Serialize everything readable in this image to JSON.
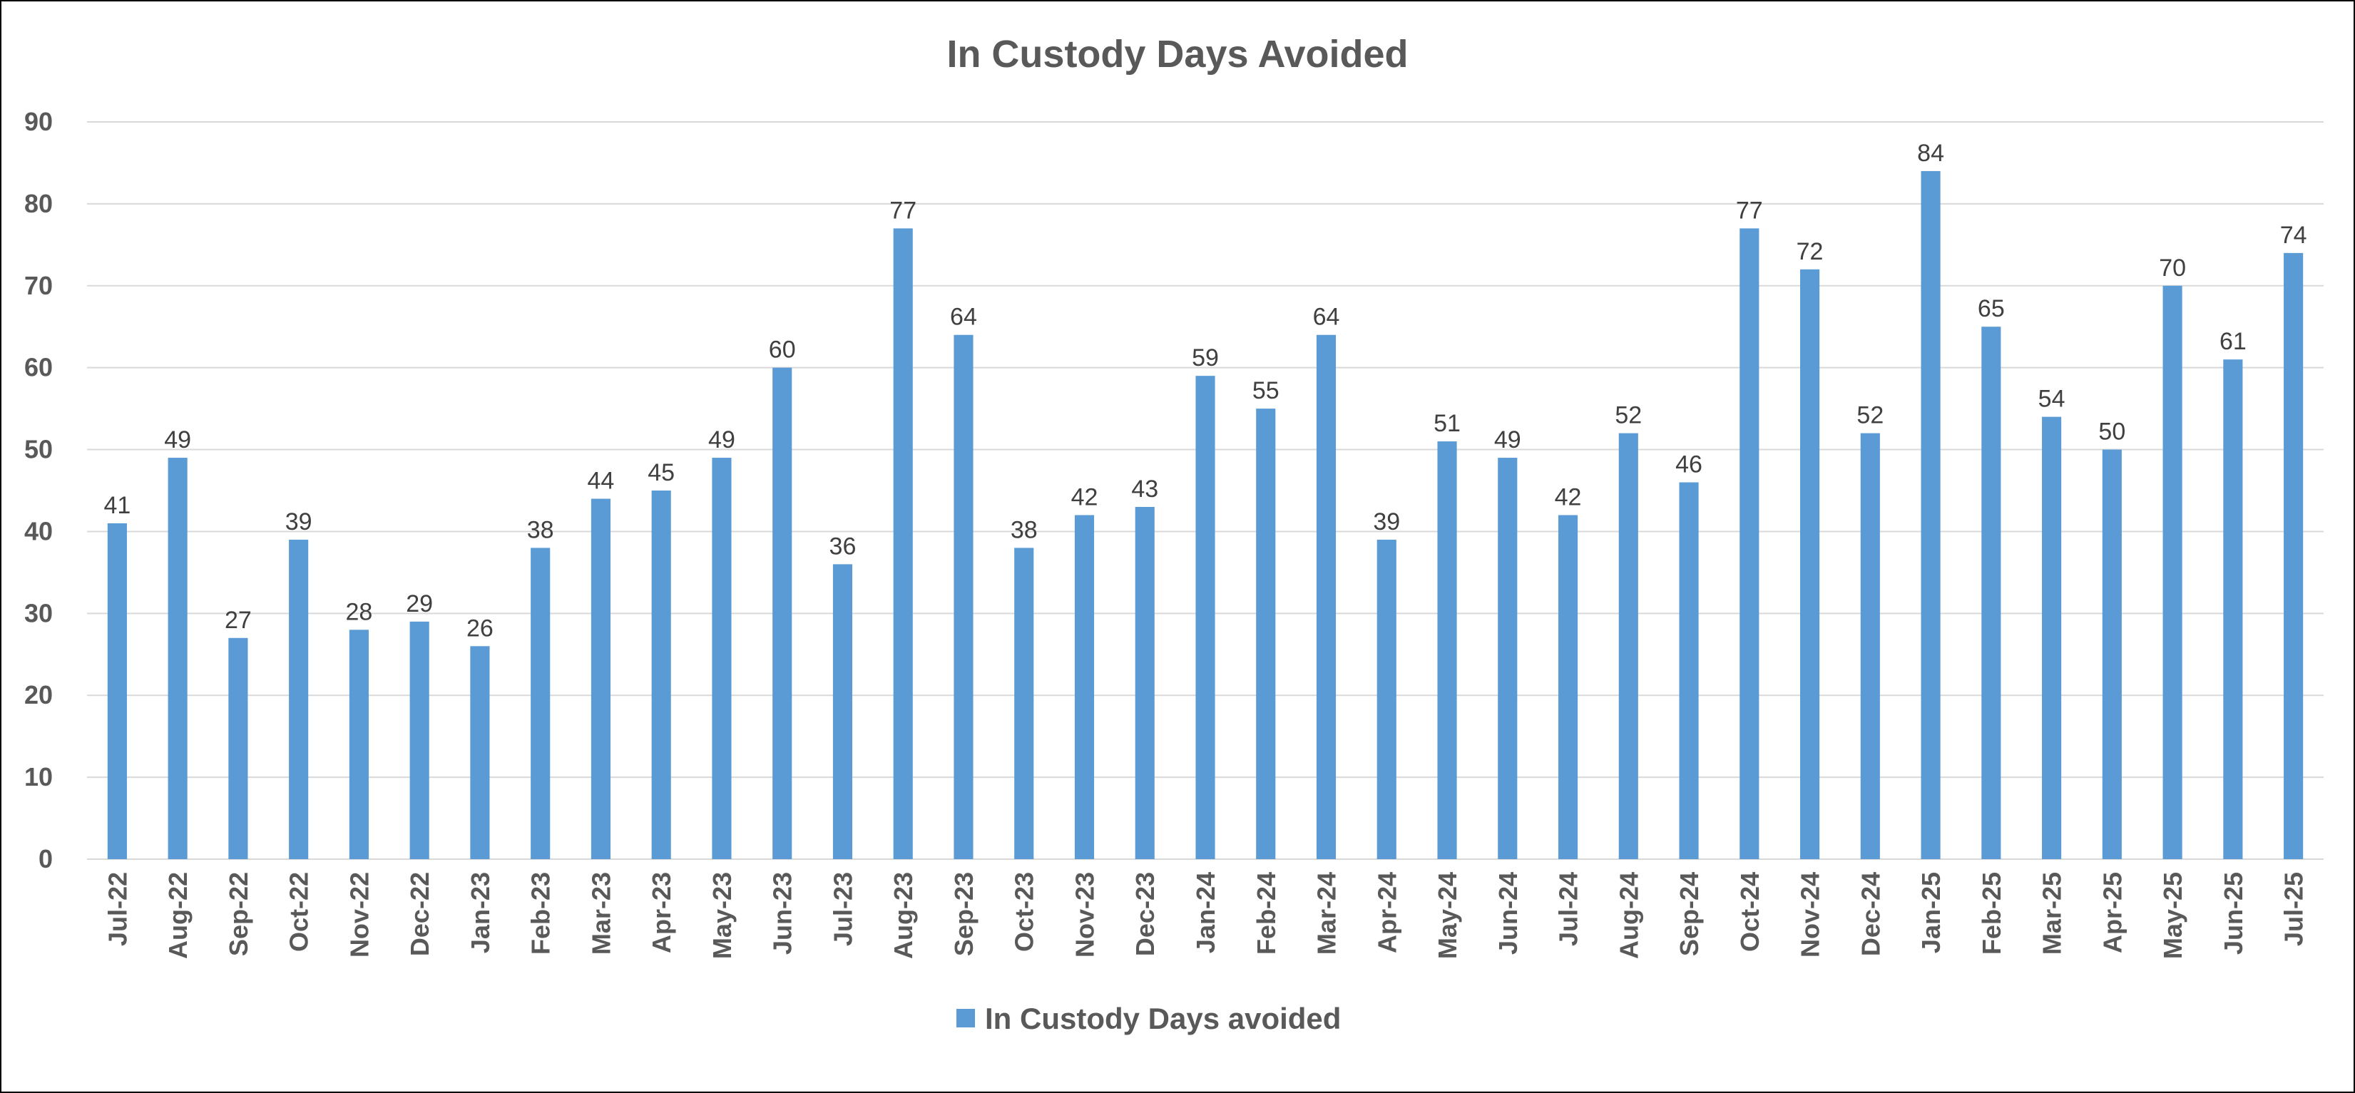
{
  "chart_data": {
    "type": "bar",
    "title": "In Custody Days Avoided",
    "xlabel": "",
    "ylabel": "",
    "ylim": [
      0,
      90
    ],
    "yticks": [
      0,
      10,
      20,
      30,
      40,
      50,
      60,
      70,
      80,
      90
    ],
    "grid": true,
    "legend_position": "bottom",
    "data_labels": true,
    "categories": [
      "Jul-22",
      "Aug-22",
      "Sep-22",
      "Oct-22",
      "Nov-22",
      "Dec-22",
      "Jan-23",
      "Feb-23",
      "Mar-23",
      "Apr-23",
      "May-23",
      "Jun-23",
      "Jul-23",
      "Aug-23",
      "Sep-23",
      "Oct-23",
      "Nov-23",
      "Dec-23",
      "Jan-24",
      "Feb-24",
      "Mar-24",
      "Apr-24",
      "May-24",
      "Jun-24",
      "Jul-24",
      "Aug-24",
      "Sep-24",
      "Oct-24",
      "Nov-24",
      "Dec-24",
      "Jan-25",
      "Feb-25",
      "Mar-25",
      "Apr-25",
      "May-25",
      "Jun-25",
      "Jul-25"
    ],
    "series": [
      {
        "name": "In Custody Days avoided",
        "color": "#5b9bd5",
        "values": [
          41,
          49,
          27,
          39,
          28,
          29,
          26,
          38,
          44,
          45,
          49,
          60,
          36,
          77,
          64,
          38,
          42,
          43,
          59,
          55,
          64,
          39,
          51,
          49,
          42,
          52,
          46,
          77,
          72,
          52,
          84,
          65,
          54,
          50,
          70,
          61,
          74
        ]
      }
    ]
  }
}
